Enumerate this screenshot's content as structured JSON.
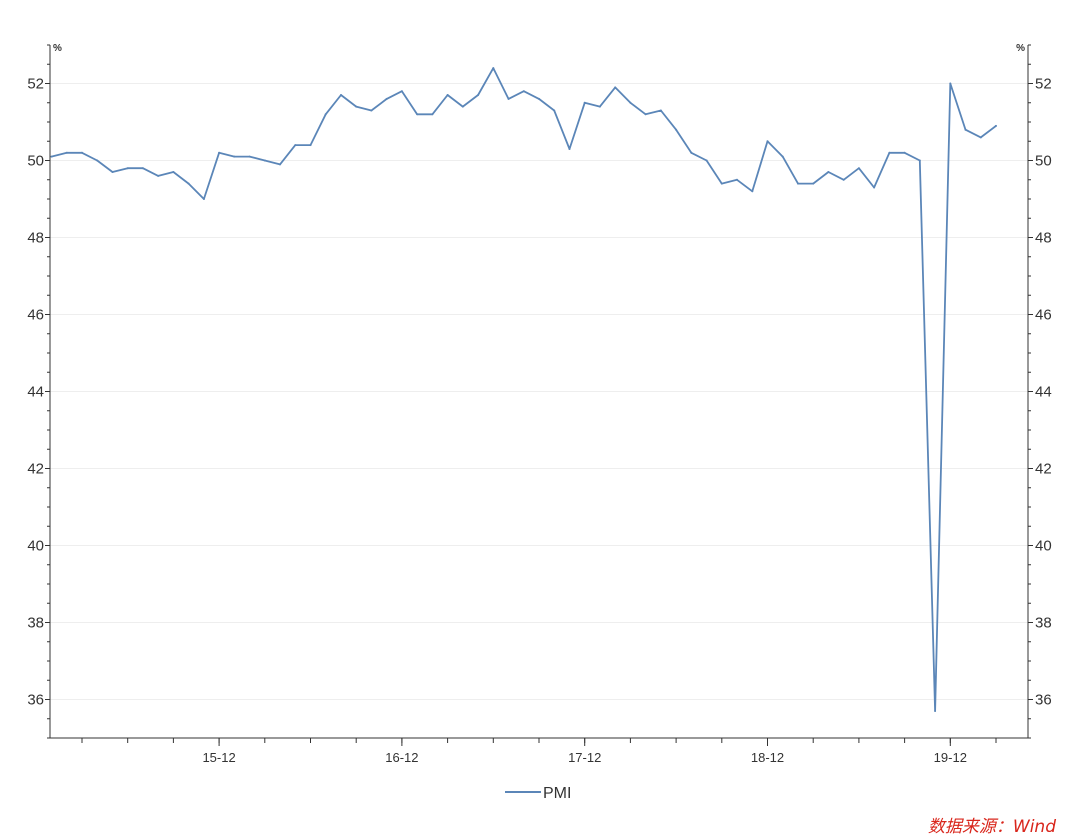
{
  "chart_data": {
    "type": "line",
    "unit_left": "%",
    "unit_right": "%",
    "ylim": [
      35,
      53
    ],
    "yticks": [
      36,
      38,
      40,
      42,
      44,
      46,
      48,
      50,
      52
    ],
    "x_start": "2015-01",
    "x_end": "2020-05",
    "x_tick_labels": [
      {
        "label": "15-12",
        "date": "2015-12"
      },
      {
        "label": "16-12",
        "date": "2016-12"
      },
      {
        "label": "17-12",
        "date": "2017-12"
      },
      {
        "label": "18-12",
        "date": "2018-12"
      },
      {
        "label": "19-12",
        "date": "2019-12"
      }
    ],
    "grid": "horizontal",
    "legend_position": "bottom-center",
    "series": [
      {
        "name": "PMI",
        "color": "#5b86b8",
        "points": [
          [
            "2015-01",
            50.1
          ],
          [
            "2015-02",
            50.2
          ],
          [
            "2015-03",
            50.2
          ],
          [
            "2015-04",
            50.0
          ],
          [
            "2015-05",
            49.7
          ],
          [
            "2015-06",
            49.8
          ],
          [
            "2015-07",
            49.8
          ],
          [
            "2015-08",
            49.6
          ],
          [
            "2015-09",
            49.7
          ],
          [
            "2015-10",
            49.4
          ],
          [
            "2015-11",
            49.0
          ],
          [
            "2015-12",
            50.2
          ],
          [
            "2016-01",
            50.1
          ],
          [
            "2016-02",
            50.1
          ],
          [
            "2016-03",
            50.0
          ],
          [
            "2016-04",
            49.9
          ],
          [
            "2016-05",
            50.4
          ],
          [
            "2016-06",
            50.4
          ],
          [
            "2016-07",
            51.2
          ],
          [
            "2016-08",
            51.7
          ],
          [
            "2016-09",
            51.4
          ],
          [
            "2016-10",
            51.3
          ],
          [
            "2016-11",
            51.6
          ],
          [
            "2016-12",
            51.8
          ],
          [
            "2017-01",
            51.2
          ],
          [
            "2017-02",
            51.2
          ],
          [
            "2017-03",
            51.7
          ],
          [
            "2017-04",
            51.4
          ],
          [
            "2017-05",
            51.7
          ],
          [
            "2017-06",
            52.4
          ],
          [
            "2017-07",
            51.6
          ],
          [
            "2017-08",
            51.8
          ],
          [
            "2017-09",
            51.6
          ],
          [
            "2017-10",
            51.3
          ],
          [
            "2017-11",
            50.3
          ],
          [
            "2017-12",
            51.5
          ],
          [
            "2018-01",
            51.4
          ],
          [
            "2018-02",
            51.9
          ],
          [
            "2018-03",
            51.5
          ],
          [
            "2018-04",
            51.2
          ],
          [
            "2018-05",
            51.3
          ],
          [
            "2018-06",
            50.8
          ],
          [
            "2018-07",
            50.2
          ],
          [
            "2018-08",
            50.0
          ],
          [
            "2018-09",
            49.4
          ],
          [
            "2018-10",
            49.5
          ],
          [
            "2018-11",
            49.2
          ],
          [
            "2018-12",
            50.5
          ],
          [
            "2019-01",
            50.1
          ],
          [
            "2019-02",
            49.4
          ],
          [
            "2019-03",
            49.4
          ],
          [
            "2019-04",
            49.7
          ],
          [
            "2019-05",
            49.5
          ],
          [
            "2019-06",
            49.8
          ],
          [
            "2019-07",
            49.3
          ],
          [
            "2019-08",
            50.2
          ],
          [
            "2019-09",
            50.2
          ],
          [
            "2019-10",
            50.0
          ],
          [
            "2019-11",
            35.7
          ],
          [
            "2019-12",
            52.0
          ],
          [
            "2020-01",
            50.8
          ],
          [
            "2020-02",
            50.6
          ],
          [
            "2020-03",
            50.9
          ]
        ]
      }
    ]
  },
  "legend": {
    "label": "PMI"
  },
  "source": {
    "text": "数据来源：Wind"
  }
}
